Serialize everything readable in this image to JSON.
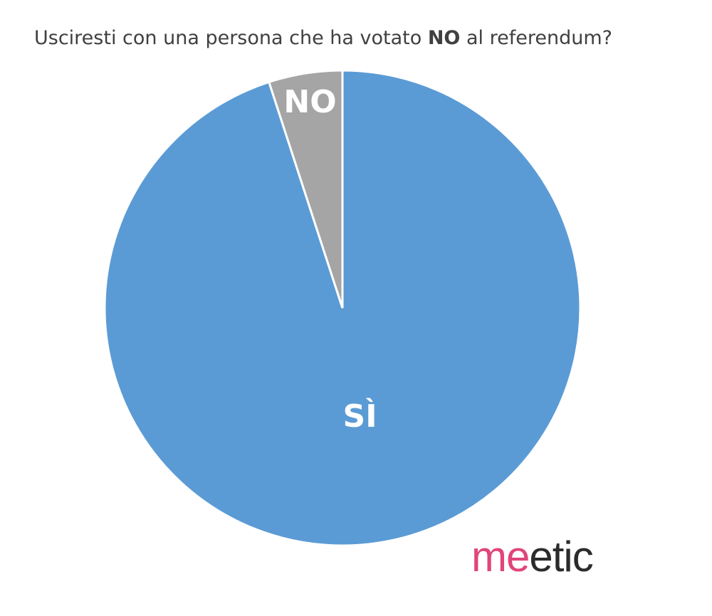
{
  "chart_data": {
    "type": "pie",
    "title_parts": [
      {
        "text": "Usciresti con una persona che ha votato ",
        "bold": false
      },
      {
        "text": "NO",
        "bold": true
      },
      {
        "text": " al referendum?",
        "bold": false
      }
    ],
    "categories": [
      "SÌ",
      "NO"
    ],
    "values": [
      95,
      5
    ],
    "colors": [
      "#5b9bd5",
      "#a5a5a5"
    ],
    "logo_parts": [
      {
        "text": "me",
        "color": "#e0457b"
      },
      {
        "text": "etic",
        "color": "#2b2b2b"
      }
    ]
  }
}
